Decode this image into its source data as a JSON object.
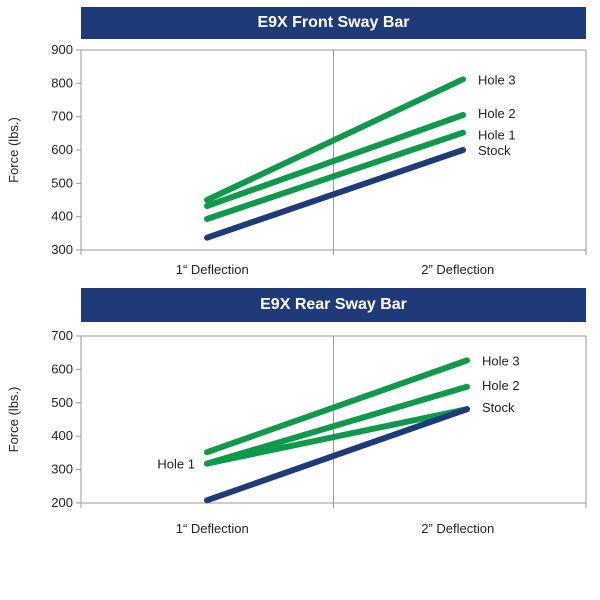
{
  "chart_data": [
    {
      "type": "line",
      "title": "E9X Front Sway Bar",
      "ylabel": "Force (lbs.)",
      "categories": [
        "1“ Deflection",
        "2” Deflection"
      ],
      "ylim": [
        300,
        900
      ],
      "yticks": [
        300,
        400,
        500,
        600,
        700,
        800,
        900
      ],
      "grid": "vertical-divider",
      "colors": {
        "stock": "#1f3a78",
        "hole": "#0e9a4a"
      },
      "series": [
        {
          "name": "Hole 3",
          "values": [
            450,
            812
          ],
          "color": "#0e9a4a"
        },
        {
          "name": "Hole 2",
          "values": [
            432,
            705
          ],
          "color": "#0e9a4a"
        },
        {
          "name": "Hole 1",
          "values": [
            393,
            652
          ],
          "color": "#0e9a4a"
        },
        {
          "name": "Stock",
          "values": [
            337,
            600
          ],
          "color": "#1f3a78"
        }
      ]
    },
    {
      "type": "line",
      "title": "E9X Rear Sway Bar",
      "ylabel": "Force (lbs.)",
      "categories": [
        "1“ Deflection",
        "2” Deflection"
      ],
      "ylim": [
        200,
        700
      ],
      "yticks": [
        200,
        300,
        400,
        500,
        600,
        700
      ],
      "grid": "vertical-divider",
      "colors": {
        "stock": "#1f3a78",
        "hole": "#0e9a4a"
      },
      "series": [
        {
          "name": "Hole 3",
          "values": [
            352,
            627
          ],
          "color": "#0e9a4a"
        },
        {
          "name": "Hole 2",
          "values": [
            318,
            548
          ],
          "color": "#0e9a4a"
        },
        {
          "name": "Hole 1",
          "values": [
            318,
            481
          ],
          "color": "#0e9a4a"
        },
        {
          "name": "Stock",
          "values": [
            208,
            481
          ],
          "color": "#1f3a78"
        }
      ]
    }
  ]
}
